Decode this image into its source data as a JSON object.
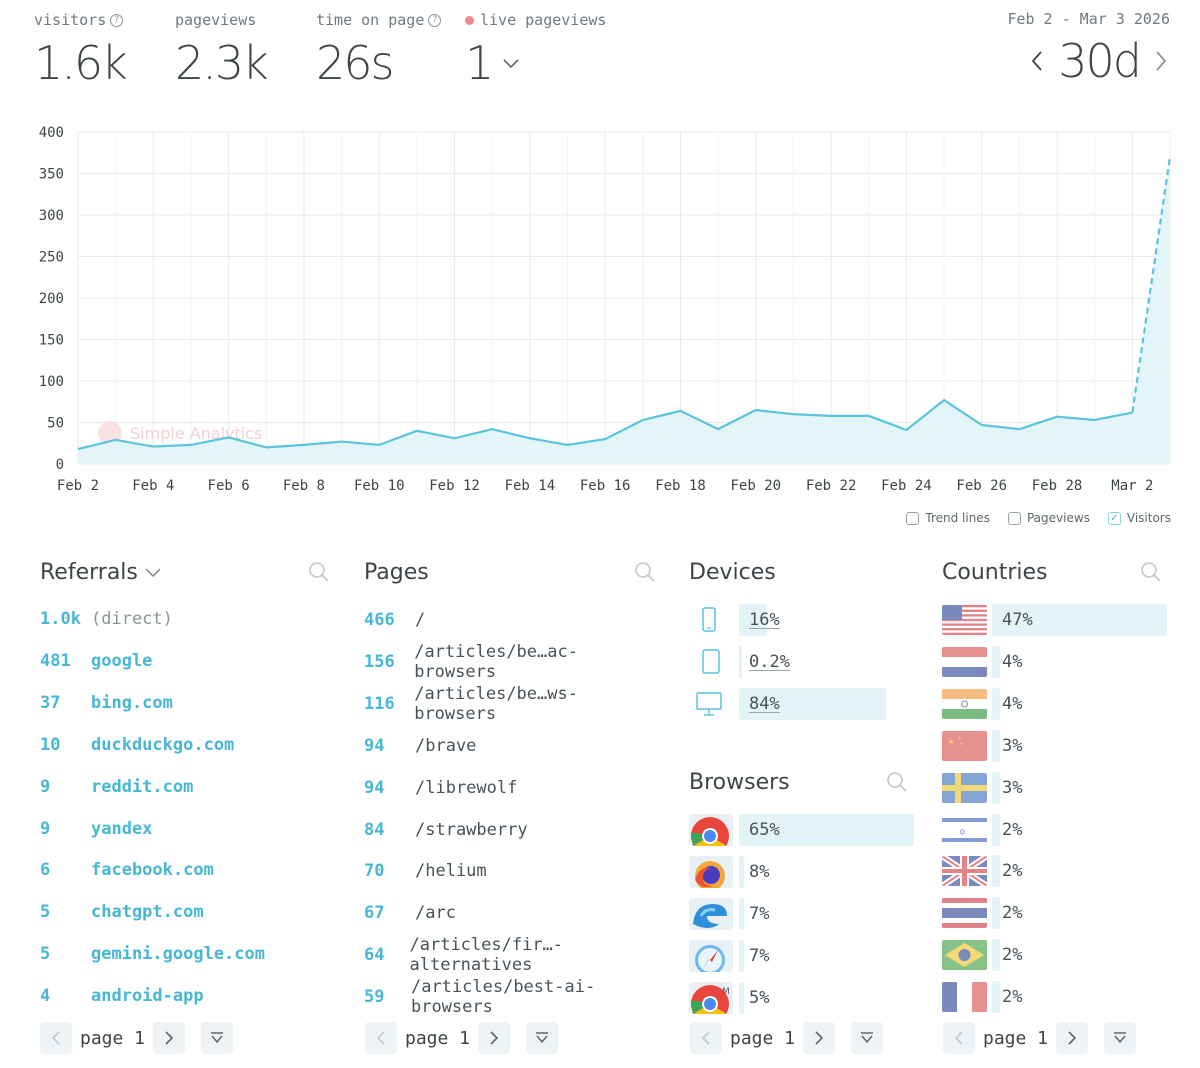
{
  "metrics": {
    "visitors": {
      "label": "visitors",
      "value": "1.6k"
    },
    "pageviews": {
      "label": "pageviews",
      "value": "2.3k"
    },
    "time_on_page": {
      "label": "time on page",
      "value": "26s"
    },
    "live": {
      "label": "live pageviews",
      "value": "1"
    }
  },
  "date_range": {
    "label": "Feb 2 - Mar 3 2026",
    "value": "30d"
  },
  "watermark": "Simple Analytics",
  "chart_data": {
    "type": "area",
    "series": [
      {
        "name": "Visitors",
        "values": [
          18,
          29,
          21,
          23,
          32,
          20,
          23,
          27,
          23,
          40,
          31,
          42,
          31,
          23,
          30,
          53,
          64,
          42,
          65,
          60,
          58,
          58,
          41,
          77,
          47,
          42,
          57,
          53,
          62,
          370
        ]
      }
    ],
    "categories": [
      "Feb 2",
      "Feb 3",
      "Feb 4",
      "Feb 5",
      "Feb 6",
      "Feb 7",
      "Feb 8",
      "Feb 9",
      "Feb 10",
      "Feb 11",
      "Feb 12",
      "Feb 13",
      "Feb 14",
      "Feb 15",
      "Feb 16",
      "Feb 17",
      "Feb 18",
      "Feb 19",
      "Feb 20",
      "Feb 21",
      "Feb 22",
      "Feb 23",
      "Feb 24",
      "Feb 25",
      "Feb 26",
      "Feb 27",
      "Feb 28",
      "Mar 1",
      "Mar 2",
      "Mar 3"
    ],
    "x_tick_labels": [
      "Feb 2",
      "Feb 4",
      "Feb 6",
      "Feb 8",
      "Feb 10",
      "Feb 12",
      "Feb 14",
      "Feb 16",
      "Feb 18",
      "Feb 20",
      "Feb 22",
      "Feb 24",
      "Feb 26",
      "Feb 28",
      "Mar 2"
    ],
    "y_ticks": [
      0,
      50,
      100,
      150,
      200,
      250,
      300,
      350,
      400
    ],
    "ylim": [
      0,
      400
    ],
    "dashed_last_segment": true,
    "grid": true,
    "line_color": "#5bc3dd",
    "fill_color": "#e4f5fa"
  },
  "legend": {
    "trend": "Trend lines",
    "pageviews": "Pageviews",
    "visitors": "Visitors"
  },
  "referrals": {
    "title": "Referrals",
    "rows": [
      {
        "count": "1.0k",
        "label": "(direct)"
      },
      {
        "count": "481",
        "label": "google"
      },
      {
        "count": "37",
        "label": "bing.com"
      },
      {
        "count": "10",
        "label": "duckduckgo.com"
      },
      {
        "count": "9",
        "label": "reddit.com"
      },
      {
        "count": "9",
        "label": "yandex"
      },
      {
        "count": "6",
        "label": "facebook.com"
      },
      {
        "count": "5",
        "label": "chatgpt.com"
      },
      {
        "count": "5",
        "label": "gemini.google.com"
      },
      {
        "count": "4",
        "label": "android-app"
      }
    ]
  },
  "pages": {
    "title": "Pages",
    "rows": [
      {
        "count": "466",
        "path": "/"
      },
      {
        "count": "156",
        "path": "/articles/be…ac-browsers"
      },
      {
        "count": "116",
        "path": "/articles/be…ws-browsers"
      },
      {
        "count": "94",
        "path": "/brave"
      },
      {
        "count": "94",
        "path": "/librewolf"
      },
      {
        "count": "84",
        "path": "/strawberry"
      },
      {
        "count": "70",
        "path": "/helium"
      },
      {
        "count": "67",
        "path": "/arc"
      },
      {
        "count": "64",
        "path": "/articles/fir…-alternatives"
      },
      {
        "count": "59",
        "path": "/articles/best-ai-browsers"
      }
    ]
  },
  "devices": {
    "title": "Devices",
    "rows": [
      {
        "icon": "mobile-icon",
        "pct": "16%",
        "value": 16
      },
      {
        "icon": "tablet-icon",
        "pct": "0.2%",
        "value": 0.2
      },
      {
        "icon": "desktop-icon",
        "pct": "84%",
        "value": 84
      }
    ]
  },
  "browsers": {
    "title": "Browsers",
    "rows": [
      {
        "icon": "chrome-icon",
        "pct": "65%",
        "value": 65
      },
      {
        "icon": "firefox-icon",
        "pct": "8%",
        "value": 8
      },
      {
        "icon": "edge-icon",
        "pct": "7%",
        "value": 7
      },
      {
        "icon": "safari-icon",
        "pct": "7%",
        "value": 7
      },
      {
        "icon": "chrome-mobile-icon",
        "pct": "5%",
        "value": 5
      }
    ]
  },
  "countries": {
    "title": "Countries",
    "rows": [
      {
        "flag": "us-flag-icon",
        "pct": "47%",
        "value": 47
      },
      {
        "flag": "nl-flag-icon",
        "pct": "4%",
        "value": 4
      },
      {
        "flag": "in-flag-icon",
        "pct": "4%",
        "value": 4
      },
      {
        "flag": "cn-flag-icon",
        "pct": "3%",
        "value": 3
      },
      {
        "flag": "se-flag-icon",
        "pct": "3%",
        "value": 3
      },
      {
        "flag": "il-flag-icon",
        "pct": "2%",
        "value": 2
      },
      {
        "flag": "gb-flag-icon",
        "pct": "2%",
        "value": 2
      },
      {
        "flag": "th-flag-icon",
        "pct": "2%",
        "value": 2
      },
      {
        "flag": "br-flag-icon",
        "pct": "2%",
        "value": 2
      },
      {
        "flag": "fr-flag-icon",
        "pct": "2%",
        "value": 2
      }
    ]
  },
  "pager": {
    "label": "page 1"
  }
}
